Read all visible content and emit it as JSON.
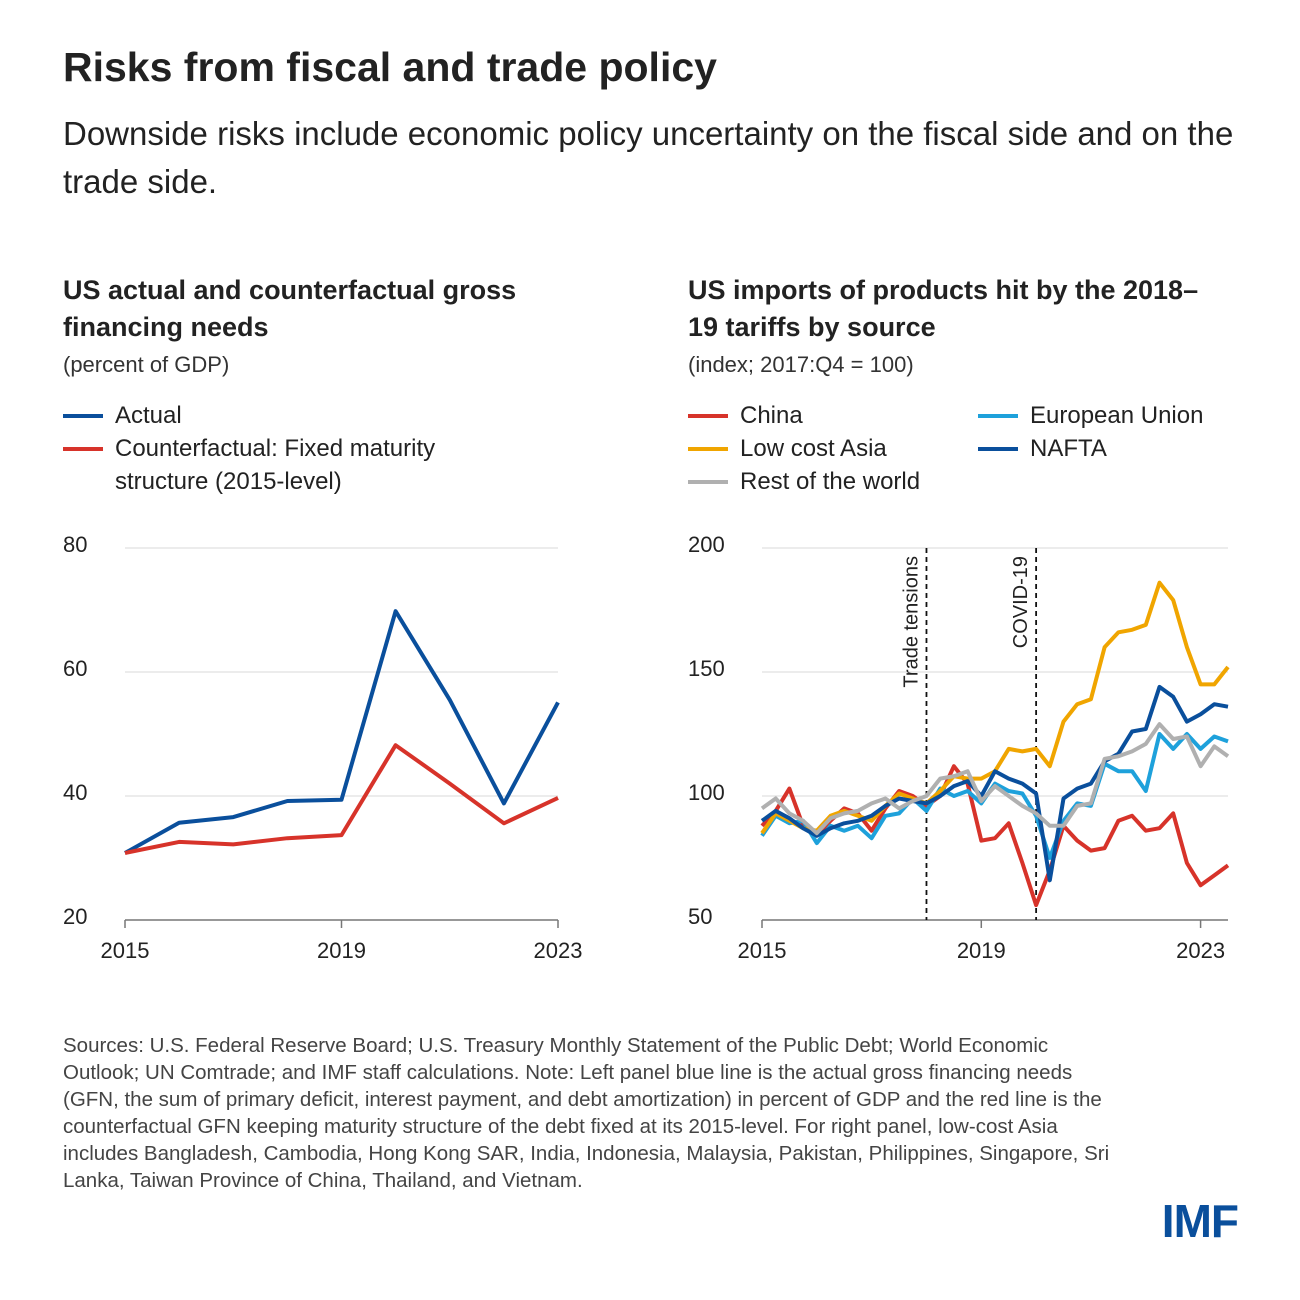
{
  "title": "Risks from fiscal and trade policy",
  "subtitle": "Downside risks include economic policy uncertainty on the fiscal side and on the trade side.",
  "sources": "Sources: U.S. Federal Reserve Board; U.S. Treasury Monthly Statement of the Public Debt; World Economic Outlook; UN Comtrade; and IMF staff calculations. Note: Left panel blue line is the actual gross financing needs (GFN, the sum of primary deficit, interest payment, and debt amortization) in percent of GDP and the red line is the counterfactual GFN keeping maturity structure of the debt fixed at its 2015-level. For right panel, low-cost Asia includes Bangladesh, Cambodia, Hong Kong SAR, India, Indonesia, Malaysia, Pakistan, Philippines, Singapore, Sri Lanka, Taiwan Province of China, Thailand, and Vietnam.",
  "logo": "IMF",
  "chart_data": [
    {
      "type": "line",
      "title": "US actual and counterfactual gross financing needs",
      "subtitle": "(percent of GDP)",
      "x": [
        2015,
        2016,
        2017,
        2018,
        2019,
        2020,
        2021,
        2022,
        2023
      ],
      "xlim": [
        2015,
        2023
      ],
      "xticks": [
        2015,
        2019,
        2023
      ],
      "ylim": [
        20,
        80
      ],
      "yticks": [
        20,
        40,
        60,
        80
      ],
      "grid": true,
      "series": [
        {
          "name": "Actual",
          "color": "#0a4f9c",
          "values": [
            30.8,
            35.7,
            36.6,
            39.2,
            39.4,
            69.8,
            55.5,
            38.8,
            55.1
          ]
        },
        {
          "name": "Counterfactual: Fixed maturity structure (2015-level)",
          "color": "#d7332a",
          "values": [
            30.8,
            32.6,
            32.2,
            33.2,
            33.7,
            48.2,
            42.0,
            35.6,
            39.7
          ]
        }
      ]
    },
    {
      "type": "line",
      "title": "US imports of products hit by the 2018–19 tariffs by source",
      "subtitle": "(index; 2017:Q4 = 100)",
      "x": [
        2015,
        2015.25,
        2015.5,
        2015.75,
        2016,
        2016.25,
        2016.5,
        2016.75,
        2017,
        2017.25,
        2017.5,
        2017.75,
        2018,
        2018.25,
        2018.5,
        2018.75,
        2019,
        2019.25,
        2019.5,
        2019.75,
        2020,
        2020.25,
        2020.5,
        2020.75,
        2021,
        2021.25,
        2021.5,
        2021.75,
        2022,
        2022.25,
        2022.5,
        2022.75,
        2023,
        2023.25,
        2023.5
      ],
      "xlim": [
        2015,
        2023.5
      ],
      "xticks": [
        2015,
        2019,
        2023
      ],
      "ylim": [
        50,
        200
      ],
      "yticks": [
        50,
        100,
        150,
        200
      ],
      "grid": true,
      "annotations": [
        {
          "text": "Trade tensions",
          "x": 2018
        },
        {
          "text": "COVID-19",
          "x": 2020
        }
      ],
      "series": [
        {
          "name": "China",
          "color": "#d7332a",
          "values": [
            88,
            94,
            103,
            88,
            84,
            90,
            95,
            93,
            86,
            95,
            102,
            100,
            96,
            100,
            112,
            105,
            82,
            83,
            89,
            73,
            56,
            70,
            88,
            82,
            78,
            79,
            90,
            92,
            86,
            87,
            93,
            73,
            64,
            68,
            72
          ]
        },
        {
          "name": "European Union",
          "color": "#1ea1db",
          "values": [
            84,
            92,
            89,
            90,
            81,
            88,
            86,
            88,
            83,
            92,
            93,
            99,
            94,
            103,
            100,
            102,
            97,
            105,
            102,
            101,
            92,
            75,
            90,
            97,
            96,
            113,
            110,
            110,
            102,
            125,
            119,
            125,
            119,
            124,
            122
          ]
        },
        {
          "name": "Low cost Asia",
          "color": "#f0a500",
          "values": [
            85,
            93,
            90,
            87,
            86,
            92,
            94,
            92,
            90,
            96,
            101,
            99,
            97,
            102,
            108,
            107,
            107,
            110,
            119,
            118,
            119,
            112,
            130,
            137,
            139,
            160,
            166,
            167,
            169,
            186,
            179,
            160,
            145,
            145,
            152
          ]
        },
        {
          "name": "NAFTA",
          "color": "#0a4f9c",
          "values": [
            90,
            94,
            91,
            87,
            84,
            87,
            89,
            90,
            92,
            96,
            99,
            98,
            97,
            100,
            104,
            106,
            100,
            110,
            107,
            105,
            101,
            66,
            99,
            103,
            105,
            114,
            117,
            126,
            127,
            144,
            140,
            130,
            133,
            137,
            136
          ]
        },
        {
          "name": "Rest of the world",
          "color": "#b0b0b0",
          "values": [
            95,
            99,
            93,
            90,
            85,
            91,
            93,
            94,
            97,
            99,
            95,
            98,
            100,
            107,
            108,
            110,
            98,
            104,
            100,
            96,
            93,
            88,
            88,
            96,
            97,
            115,
            116,
            118,
            121,
            129,
            123,
            124,
            112,
            120,
            116
          ]
        }
      ]
    }
  ]
}
